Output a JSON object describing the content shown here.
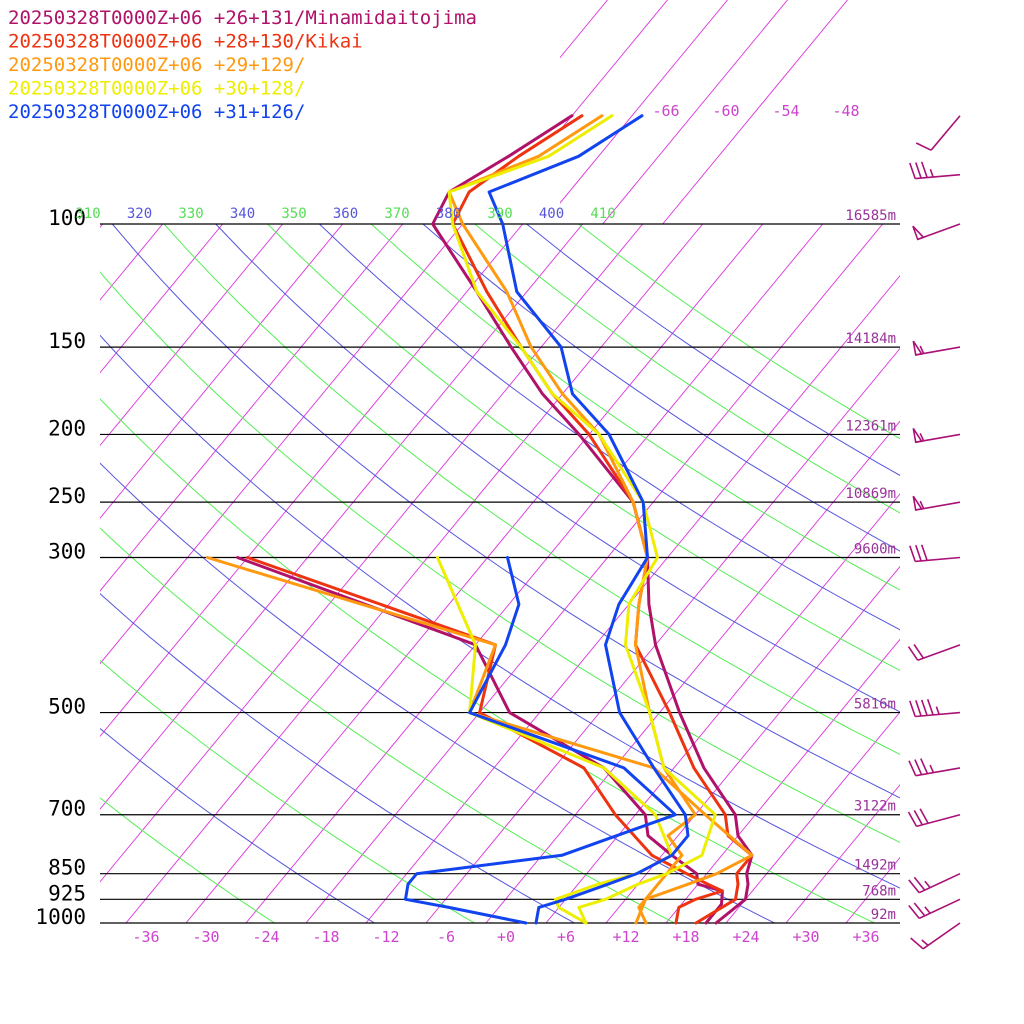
{
  "chart_data": {
    "type": "line",
    "subtype": "skew-t log-p sounding",
    "legend_placement": "top-left",
    "legend": [
      {
        "text": "20250328T0000Z+06 +26+131/Minamidaitojima",
        "color": "#b0126a"
      },
      {
        "text": "20250328T0000Z+06 +28+130/Kikai",
        "color": "#ee3311"
      },
      {
        "text": "20250328T0000Z+06 +29+129/",
        "color": "#ff9910"
      },
      {
        "text": "20250328T0000Z+06 +30+128/",
        "color": "#eeee00"
      },
      {
        "text": "20250328T0000Z+06 +31+126/",
        "color": "#1144ee"
      }
    ],
    "pressure_levels": [
      {
        "p": 100,
        "label": "100",
        "height": "16585m"
      },
      {
        "p": 150,
        "label": "150",
        "height": "14184m"
      },
      {
        "p": 200,
        "label": "200",
        "height": "12361m"
      },
      {
        "p": 250,
        "label": "250",
        "height": "10869m"
      },
      {
        "p": 300,
        "label": "300",
        "height": "9600m"
      },
      {
        "p": 500,
        "label": "500",
        "height": "5816m"
      },
      {
        "p": 700,
        "label": "700",
        "height": "3122m"
      },
      {
        "p": 850,
        "label": "850",
        "height": "1492m"
      },
      {
        "p": 925,
        "label": "925",
        "height": "768m"
      },
      {
        "p": 1000,
        "label": "1000",
        "height": "92m"
      }
    ],
    "x_ticks": [
      {
        "v": -36,
        "label": "-36"
      },
      {
        "v": -30,
        "label": "-30"
      },
      {
        "v": -24,
        "label": "-24"
      },
      {
        "v": -18,
        "label": "-18"
      },
      {
        "v": -12,
        "label": "-12"
      },
      {
        "v": -6,
        "label": "-6"
      },
      {
        "v": 0,
        "label": "+0"
      },
      {
        "v": 6,
        "label": "+6"
      },
      {
        "v": 12,
        "label": "+12"
      },
      {
        "v": 18,
        "label": "+18"
      },
      {
        "v": 24,
        "label": "+24"
      },
      {
        "v": 30,
        "label": "+30"
      },
      {
        "v": 36,
        "label": "+36"
      }
    ],
    "upper_temp_labels": [
      "-66",
      "-60",
      "-54",
      "-48"
    ],
    "theta_labels": [
      {
        "text": "310",
        "color": "#55dd55"
      },
      {
        "text": "320",
        "color": "#5555dd"
      },
      {
        "text": "330",
        "color": "#55dd55"
      },
      {
        "text": "340",
        "color": "#5555dd"
      },
      {
        "text": "350",
        "color": "#55dd55"
      },
      {
        "text": "360",
        "color": "#5555dd"
      },
      {
        "text": "370",
        "color": "#55dd55"
      },
      {
        "text": "380",
        "color": "#5555dd"
      },
      {
        "text": "390",
        "color": "#55dd55"
      },
      {
        "text": "400",
        "color": "#5555dd"
      },
      {
        "text": "410",
        "color": "#55dd55"
      }
    ],
    "xlim": [
      -40,
      40
    ],
    "ylim": [
      1000,
      100
    ],
    "y_scale": "log",
    "series": [
      {
        "name": "20250328T0000Z+06 +26+131/Minamidaitojima",
        "color": "#b0126a",
        "kind": "temperature",
        "points": [
          [
            1000,
            21
          ],
          [
            925,
            22
          ],
          [
            880,
            21
          ],
          [
            850,
            20
          ],
          [
            800,
            19
          ],
          [
            750,
            16
          ],
          [
            700,
            14
          ],
          [
            600,
            7
          ],
          [
            500,
            0
          ],
          [
            400,
            -8
          ],
          [
            350,
            -12
          ],
          [
            300,
            -16
          ],
          [
            250,
            -22
          ],
          [
            200,
            -33
          ],
          [
            175,
            -40
          ],
          [
            150,
            -47
          ],
          [
            125,
            -55
          ],
          [
            100,
            -65
          ],
          [
            90,
            -66
          ],
          [
            80,
            -63
          ],
          [
            70,
            -60
          ]
        ]
      },
      {
        "name": "20250328T0000Z+06 +26+131/Minamidaitojima",
        "color": "#b0126a",
        "kind": "dewpoint",
        "points": [
          [
            1000,
            20
          ],
          [
            940,
            20
          ],
          [
            900,
            19
          ],
          [
            880,
            16
          ],
          [
            850,
            15
          ],
          [
            800,
            11
          ],
          [
            750,
            7
          ],
          [
            700,
            5
          ],
          [
            600,
            -3
          ],
          [
            500,
            -17
          ],
          [
            400,
            -26
          ],
          [
            300,
            -57
          ]
        ]
      },
      {
        "name": "20250328T0000Z+06 +28+130/Kikai",
        "color": "#ee3311",
        "kind": "temperature",
        "points": [
          [
            1000,
            19
          ],
          [
            925,
            21
          ],
          [
            880,
            20
          ],
          [
            850,
            19
          ],
          [
            800,
            19
          ],
          [
            750,
            15
          ],
          [
            700,
            13
          ],
          [
            600,
            6
          ],
          [
            500,
            -1
          ],
          [
            400,
            -10
          ],
          [
            350,
            -13
          ],
          [
            300,
            -16
          ],
          [
            250,
            -22
          ],
          [
            200,
            -32
          ],
          [
            175,
            -39
          ],
          [
            150,
            -46
          ],
          [
            125,
            -54
          ],
          [
            100,
            -63
          ],
          [
            90,
            -64
          ],
          [
            80,
            -62
          ],
          [
            70,
            -59
          ]
        ]
      },
      {
        "name": "20250328T0000Z+06 +28+130/Kikai",
        "color": "#ee3311",
        "kind": "dewpoint",
        "points": [
          [
            1000,
            17
          ],
          [
            950,
            16
          ],
          [
            925,
            17
          ],
          [
            900,
            19
          ],
          [
            880,
            17
          ],
          [
            850,
            14
          ],
          [
            800,
            9
          ],
          [
            700,
            2
          ],
          [
            600,
            -5
          ],
          [
            500,
            -20
          ],
          [
            400,
            -24
          ],
          [
            300,
            -56
          ]
        ]
      },
      {
        "name": "20250328T0000Z+06 +29+129/",
        "color": "#ff9910",
        "kind": "temperature",
        "points": [
          [
            1000,
            13
          ],
          [
            925,
            12
          ],
          [
            850,
            12
          ],
          [
            800,
            12
          ],
          [
            750,
            9
          ],
          [
            700,
            10
          ],
          [
            600,
            3
          ],
          [
            500,
            -3
          ],
          [
            400,
            -10
          ],
          [
            350,
            -13
          ],
          [
            300,
            -16
          ],
          [
            250,
            -22
          ],
          [
            200,
            -31
          ],
          [
            175,
            -38
          ],
          [
            150,
            -45
          ],
          [
            125,
            -52
          ],
          [
            100,
            -62
          ],
          [
            90,
            -66
          ],
          [
            80,
            -60
          ],
          [
            70,
            -57
          ]
        ]
      },
      {
        "name": "20250328T0000Z+06 +29+129/",
        "color": "#ff9910",
        "kind": "dewpoint",
        "points": [
          [
            1000,
            14
          ],
          [
            950,
            12
          ],
          [
            925,
            12
          ],
          [
            880,
            15
          ],
          [
            850,
            17
          ],
          [
            800,
            19
          ],
          [
            700,
            11
          ],
          [
            600,
            2
          ],
          [
            500,
            -21
          ],
          [
            400,
            -24
          ],
          [
            300,
            -60
          ]
        ]
      },
      {
        "name": "20250328T0000Z+06 +30+128/",
        "color": "#eeee00",
        "kind": "temperature",
        "points": [
          [
            1000,
            8
          ],
          [
            950,
            6
          ],
          [
            925,
            8
          ],
          [
            880,
            10
          ],
          [
            850,
            12
          ],
          [
            800,
            14
          ],
          [
            700,
            12
          ],
          [
            600,
            3
          ],
          [
            500,
            -3
          ],
          [
            400,
            -11
          ],
          [
            350,
            -14
          ],
          [
            300,
            -15
          ],
          [
            250,
            -21
          ],
          [
            200,
            -31
          ],
          [
            175,
            -39
          ],
          [
            150,
            -46
          ],
          [
            125,
            -55
          ],
          [
            100,
            -63
          ],
          [
            90,
            -66
          ],
          [
            80,
            -59
          ],
          [
            70,
            -56
          ]
        ]
      },
      {
        "name": "20250328T0000Z+06 +30+128/",
        "color": "#eeee00",
        "kind": "dewpoint",
        "points": [
          [
            1000,
            8
          ],
          [
            950,
            4
          ],
          [
            925,
            3
          ],
          [
            880,
            6
          ],
          [
            850,
            9
          ],
          [
            800,
            11
          ],
          [
            700,
            6
          ],
          [
            600,
            -3
          ],
          [
            500,
            -21
          ],
          [
            400,
            -26
          ],
          [
            300,
            -37
          ]
        ]
      },
      {
        "name": "20250328T0000Z+06 +31+126/",
        "color": "#1144ee",
        "kind": "temperature",
        "points": [
          [
            1000,
            3
          ],
          [
            950,
            2
          ],
          [
            925,
            4
          ],
          [
            880,
            7
          ],
          [
            850,
            9
          ],
          [
            800,
            11
          ],
          [
            750,
            11
          ],
          [
            700,
            9
          ],
          [
            600,
            2
          ],
          [
            500,
            -6
          ],
          [
            400,
            -13
          ],
          [
            350,
            -15
          ],
          [
            300,
            -16
          ],
          [
            250,
            -21
          ],
          [
            200,
            -30
          ],
          [
            175,
            -37
          ],
          [
            150,
            -42
          ],
          [
            125,
            -51
          ],
          [
            100,
            -58
          ],
          [
            90,
            -62
          ],
          [
            80,
            -56
          ],
          [
            70,
            -53
          ]
        ]
      },
      {
        "name": "20250328T0000Z+06 +31+126/",
        "color": "#1144ee",
        "kind": "dewpoint",
        "points": [
          [
            1000,
            2
          ],
          [
            950,
            -7
          ],
          [
            925,
            -12
          ],
          [
            880,
            -13
          ],
          [
            850,
            -13
          ],
          [
            800,
            0
          ],
          [
            700,
            8
          ],
          [
            600,
            -1
          ],
          [
            500,
            -21
          ],
          [
            400,
            -23
          ],
          [
            350,
            -25
          ],
          [
            300,
            -30
          ]
        ]
      }
    ],
    "wind_barbs": [
      {
        "p": 70,
        "angle_deg": 140,
        "flags": 0,
        "full": 1,
        "half": 0
      },
      {
        "p": 85,
        "angle_deg": 95,
        "flags": 0,
        "full": 3,
        "half": 1
      },
      {
        "p": 100,
        "angle_deg": 110,
        "flags": 1,
        "full": 0,
        "half": 0
      },
      {
        "p": 150,
        "angle_deg": 100,
        "flags": 1,
        "full": 0,
        "half": 1
      },
      {
        "p": 200,
        "angle_deg": 100,
        "flags": 1,
        "full": 0,
        "half": 1
      },
      {
        "p": 250,
        "angle_deg": 100,
        "flags": 1,
        "full": 0,
        "half": 1
      },
      {
        "p": 300,
        "angle_deg": 95,
        "flags": 0,
        "full": 3,
        "half": 0
      },
      {
        "p": 400,
        "angle_deg": 110,
        "flags": 0,
        "full": 2,
        "half": 0
      },
      {
        "p": 500,
        "angle_deg": 95,
        "flags": 0,
        "full": 4,
        "half": 1
      },
      {
        "p": 600,
        "angle_deg": 100,
        "flags": 0,
        "full": 3,
        "half": 1
      },
      {
        "p": 700,
        "angle_deg": 105,
        "flags": 0,
        "full": 3,
        "half": 0
      },
      {
        "p": 850,
        "angle_deg": 115,
        "flags": 0,
        "full": 2,
        "half": 1
      },
      {
        "p": 925,
        "angle_deg": 115,
        "flags": 0,
        "full": 2,
        "half": 1
      },
      {
        "p": 1000,
        "angle_deg": 125,
        "flags": 0,
        "full": 1,
        "half": 1
      }
    ]
  }
}
